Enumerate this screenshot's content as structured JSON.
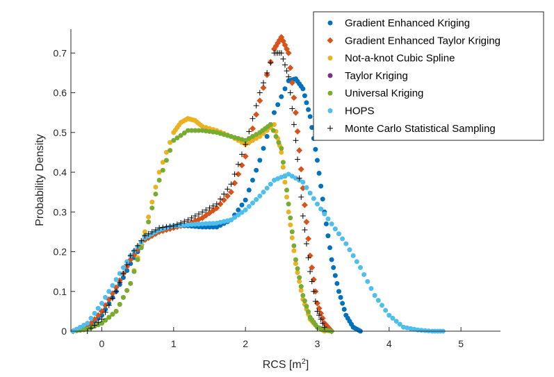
{
  "chart_data": {
    "type": "scatter",
    "xlabel": "RCS [m",
    "xlabel_sup": "2",
    "xlabel_end": "]",
    "ylabel": "Probability Density",
    "xlim": [
      -0.43,
      5.55
    ],
    "ylim": [
      0,
      0.76
    ],
    "xticks": [
      0,
      1,
      2,
      3,
      4,
      5
    ],
    "xtick_labels": [
      "0",
      "1",
      "2",
      "3",
      "4",
      "5"
    ],
    "yticks": [
      0,
      0.1,
      0.2,
      0.3,
      0.4,
      0.5,
      0.6,
      0.7
    ],
    "ytick_labels": [
      "0",
      "0.1",
      "0.2",
      "0.3",
      "0.4",
      "0.5",
      "0.6",
      "0.7"
    ],
    "grid": false,
    "legend_position": "top-right",
    "series": [
      {
        "name": "Gradient Enhanced Kriging",
        "color": "#0072BD",
        "marker": "circle",
        "x": [
          -0.4,
          -0.2,
          0,
          0.2,
          0.4,
          0.6,
          0.8,
          1,
          1.2,
          1.4,
          1.6,
          1.8,
          2,
          2.2,
          2.4,
          2.6,
          2.7,
          2.8,
          2.9,
          3,
          3.1,
          3.2,
          3.3,
          3.4,
          3.5,
          3.6
        ],
        "y": [
          0,
          0.01,
          0.04,
          0.1,
          0.17,
          0.23,
          0.255,
          0.265,
          0.265,
          0.262,
          0.262,
          0.28,
          0.33,
          0.43,
          0.55,
          0.63,
          0.635,
          0.61,
          0.54,
          0.43,
          0.3,
          0.18,
          0.1,
          0.04,
          0.01,
          0
        ]
      },
      {
        "name": "Gradient Enhanced Taylor Kriging",
        "color": "#D95319",
        "marker": "diamond",
        "x": [
          -0.4,
          -0.2,
          0,
          0.2,
          0.4,
          0.6,
          0.8,
          1,
          1.2,
          1.4,
          1.6,
          1.8,
          2,
          2.2,
          2.4,
          2.5,
          2.6,
          2.7,
          2.8,
          2.9,
          3,
          3.1,
          3.2
        ],
        "y": [
          0,
          0.01,
          0.05,
          0.11,
          0.18,
          0.23,
          0.25,
          0.26,
          0.27,
          0.285,
          0.31,
          0.35,
          0.44,
          0.58,
          0.71,
          0.74,
          0.7,
          0.55,
          0.36,
          0.19,
          0.07,
          0.02,
          0
        ]
      },
      {
        "name": "Not-a-knot Cubic Spline",
        "color": "#EDB120",
        "marker": "circle",
        "x": [
          -0.4,
          -0.2,
          0,
          0.2,
          0.4,
          0.6,
          0.8,
          1,
          1.1,
          1.2,
          1.3,
          1.4,
          1.6,
          1.8,
          2,
          2.2,
          2.4,
          2.5,
          2.6,
          2.7,
          2.8,
          2.9,
          3,
          3.1
        ],
        "y": [
          0,
          0.005,
          0.02,
          0.05,
          0.12,
          0.25,
          0.4,
          0.5,
          0.525,
          0.535,
          0.53,
          0.515,
          0.505,
          0.49,
          0.47,
          0.49,
          0.52,
          0.45,
          0.3,
          0.17,
          0.08,
          0.03,
          0.01,
          0
        ]
      },
      {
        "name": "Taylor Kriging",
        "color": "#7E2F8E",
        "marker": "circle",
        "x": [],
        "y": []
      },
      {
        "name": "Universal Kriging",
        "color": "#77AC30",
        "marker": "circle",
        "x": [
          -0.4,
          -0.2,
          0,
          0.2,
          0.4,
          0.6,
          0.8,
          1,
          1.2,
          1.4,
          1.6,
          1.8,
          2,
          2.2,
          2.35,
          2.5,
          2.6,
          2.7,
          2.8,
          2.9,
          3,
          3.1,
          3.2
        ],
        "y": [
          0,
          0.005,
          0.02,
          0.05,
          0.12,
          0.24,
          0.38,
          0.48,
          0.505,
          0.505,
          0.5,
          0.49,
          0.48,
          0.5,
          0.52,
          0.46,
          0.32,
          0.18,
          0.09,
          0.035,
          0.01,
          0.003,
          0
        ]
      },
      {
        "name": "HOPS",
        "color": "#4DBEEE",
        "marker": "circle",
        "x": [
          -0.4,
          -0.2,
          0,
          0.2,
          0.4,
          0.6,
          0.8,
          1,
          1.2,
          1.4,
          1.6,
          1.8,
          2,
          2.2,
          2.4,
          2.6,
          2.8,
          3,
          3.2,
          3.4,
          3.6,
          3.8,
          4,
          4.2,
          4.4,
          4.6,
          4.75
        ],
        "y": [
          0,
          0.02,
          0.07,
          0.13,
          0.19,
          0.235,
          0.255,
          0.265,
          0.268,
          0.27,
          0.272,
          0.28,
          0.305,
          0.34,
          0.38,
          0.395,
          0.375,
          0.32,
          0.27,
          0.22,
          0.16,
          0.09,
          0.04,
          0.01,
          0.003,
          0,
          0
        ]
      },
      {
        "name": "Monte Carlo Statistical Sampling",
        "color": "#000000",
        "marker": "plus",
        "x": [
          -0.2,
          0,
          0.2,
          0.4,
          0.6,
          0.8,
          1,
          1.2,
          1.4,
          1.6,
          1.8,
          2,
          2.2,
          2.4,
          2.5,
          2.6,
          2.7,
          2.8,
          2.9,
          3,
          3.1
        ],
        "y": [
          0,
          0.03,
          0.1,
          0.19,
          0.24,
          0.26,
          0.265,
          0.28,
          0.3,
          0.32,
          0.37,
          0.47,
          0.6,
          0.7,
          0.7,
          0.64,
          0.48,
          0.29,
          0.15,
          0.05,
          0.01
        ]
      }
    ]
  }
}
